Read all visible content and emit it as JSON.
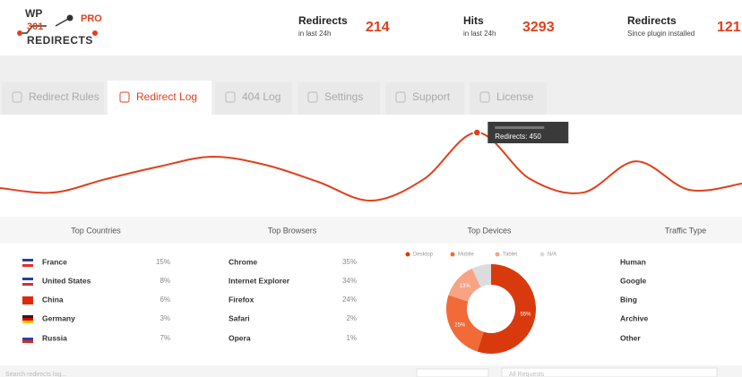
{
  "header": {
    "logo": {
      "top": "WP",
      "number": "301",
      "badge": "PRO",
      "bottom": "REDIRECTS"
    },
    "stats": [
      {
        "label": "Redirects",
        "sub": "in last 24h",
        "value": "214"
      },
      {
        "label": "Hits",
        "sub": "in last 24h",
        "value": "3293"
      },
      {
        "label": "Redirects",
        "sub": "Since plugin installed",
        "value": "121"
      }
    ]
  },
  "tabs": {
    "items": [
      "Redirect Rules",
      "Redirect Log",
      "404 Log",
      "Settings",
      "Support",
      "License"
    ],
    "active": 1
  },
  "chart_data": [
    {
      "type": "line",
      "series": [
        {
          "name": "Redirects",
          "color": "#e0401c",
          "values": [
            147,
            122,
            196,
            264,
            318,
            274,
            181,
            78,
            196,
            450,
            196,
            122,
            293,
            137,
            171
          ]
        }
      ],
      "tooltip": "Redirects: 450"
    },
    {
      "type": "pie",
      "title": "Top Devices",
      "series": [
        {
          "name": "Desktop",
          "color": "#d83a0e",
          "values": [
            55
          ],
          "value_labels": [
            "55%"
          ]
        },
        {
          "name": "Mobile",
          "color": "#f26a38",
          "values": [
            25
          ],
          "value_labels": [
            "25%"
          ]
        },
        {
          "name": "Tablet",
          "color": "#f8a383",
          "values": [
            13
          ],
          "value_labels": [
            "13%"
          ]
        },
        {
          "name": "N/A",
          "color": "#dcdcdc",
          "values": [
            7
          ],
          "value_labels": [
            null
          ]
        }
      ]
    }
  ],
  "panels": {
    "countries": {
      "title": "Top Countries",
      "rows": [
        {
          "name": "France",
          "value": "15%",
          "flag": [
            "#2a3f9a",
            "#ffffff",
            "#e03030"
          ]
        },
        {
          "name": "United States",
          "value": "8%",
          "flag": [
            "#2a3f9a",
            "#ffffff",
            "#d03030"
          ]
        },
        {
          "name": "China",
          "value": "6%",
          "flag": [
            "#de2910",
            "#de2910",
            "#de2910"
          ]
        },
        {
          "name": "Germany",
          "value": "3%",
          "flag": [
            "#222222",
            "#dd0000",
            "#ffce00"
          ]
        },
        {
          "name": "Russia",
          "value": "7%",
          "flag": [
            "#ffffff",
            "#1f47b4",
            "#d52b1e"
          ]
        }
      ]
    },
    "browsers": {
      "title": "Top Browsers",
      "rows": [
        {
          "name": "Chrome",
          "value": "35%"
        },
        {
          "name": "Internet Explorer",
          "value": "34%"
        },
        {
          "name": "Firefox",
          "value": "24%"
        },
        {
          "name": "Safari",
          "value": "2%"
        },
        {
          "name": "Opera",
          "value": "1%"
        }
      ]
    },
    "traffic": {
      "title": "Traffic Type",
      "rows": [
        {
          "name": "Human"
        },
        {
          "name": "Google"
        },
        {
          "name": "Bing"
        },
        {
          "name": "Archive"
        },
        {
          "name": "Other"
        }
      ]
    }
  },
  "footer": {
    "search": "Search redirects log...",
    "filter": "All Requests"
  }
}
